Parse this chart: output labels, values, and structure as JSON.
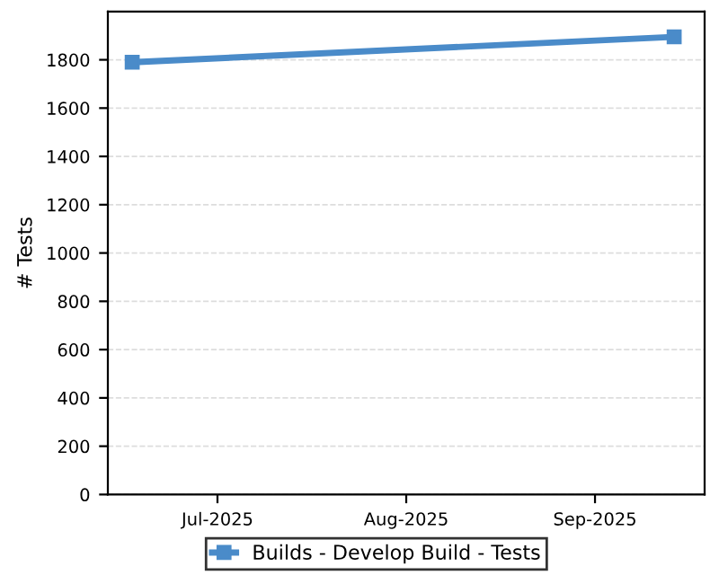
{
  "chart_data": {
    "type": "line",
    "ylabel": "# Tests",
    "x": [
      "2025-06-17",
      "2025-09-14"
    ],
    "series": [
      {
        "name": "Builds - Develop Build - Tests",
        "color": "#4a8bc9",
        "values": [
          1790,
          1895
        ]
      }
    ],
    "xlim": [
      "2025-06-13",
      "2025-09-19"
    ],
    "xticks": [
      {
        "value": "2025-07-01",
        "label": "Jul-2025"
      },
      {
        "value": "2025-08-01",
        "label": "Aug-2025"
      },
      {
        "value": "2025-09-01",
        "label": "Sep-2025"
      }
    ],
    "ylim": [
      0,
      2000
    ],
    "yticks": [
      0,
      200,
      400,
      600,
      800,
      1000,
      1200,
      1400,
      1600,
      1800
    ],
    "grid": "y",
    "legend": "bottom",
    "marker": "square",
    "line_style": "solid"
  }
}
